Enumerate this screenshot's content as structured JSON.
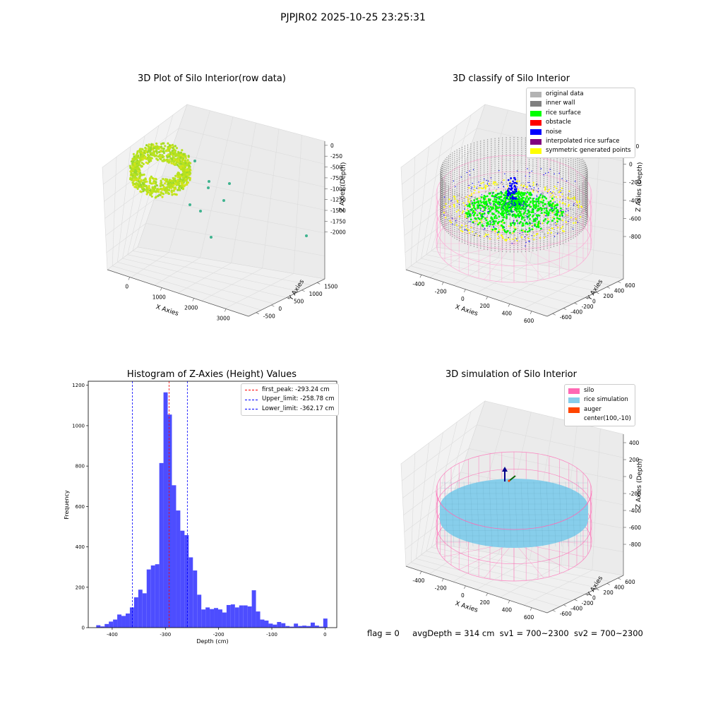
{
  "page": {
    "suptitle": "PJPJR02 2025-10-25 23:25:31",
    "footer": {
      "flag": "flag = 0",
      "avg": "avgDepth = 314 cm",
      "sv1": "sv1 = 700~2300",
      "sv2": "sv2 = 700~2300"
    }
  },
  "chart_data": [
    {
      "type": "scatter",
      "projection": "3d",
      "title": "3D Plot of Silo Interior(row data)",
      "xlabel": "X Axies",
      "ylabel": "Y Axies",
      "zlabel": "Z Axies (Depth)",
      "xticks": [
        "0",
        "1000",
        "2000",
        "3000"
      ],
      "yticks": [
        "-500",
        "0",
        "500",
        "1000",
        "1500"
      ],
      "zticks": [
        "0",
        "-250",
        "-500",
        "-750",
        "-1000",
        "-1250",
        "-1500",
        "-1750",
        "-2000"
      ],
      "colors": {
        "main": "#b7e21f",
        "outlier": "#3fb38f"
      }
    },
    {
      "type": "scatter",
      "projection": "3d",
      "title": "3D classify of Silo Interior",
      "xlabel": "X Axies",
      "ylabel": "Y Axies",
      "zlabel": "Z Axies (Depth)",
      "xticks": [
        "-400",
        "-200",
        "0",
        "200",
        "400",
        "600"
      ],
      "yticks": [
        "-600",
        "-400",
        "-200",
        "0",
        "200",
        "400",
        "600"
      ],
      "zticks": [
        "200",
        "0",
        "-200",
        "-400",
        "-600",
        "-800"
      ],
      "legend": [
        {
          "label": "original data",
          "color": "#b3b3b3"
        },
        {
          "label": "inner wall",
          "color": "#808080"
        },
        {
          "label": "rice surface",
          "color": "#00ff00"
        },
        {
          "label": "obstacle",
          "color": "#ff0000"
        },
        {
          "label": "noise",
          "color": "#0000ff"
        },
        {
          "label": "interpolated rice surface",
          "color": "#800080"
        },
        {
          "label": "symmetric generated points",
          "color": "#ffff00"
        }
      ]
    },
    {
      "type": "bar",
      "title": "Histogram of Z-Axies (Height) Values",
      "xlabel": "Depth (cm)",
      "ylabel": "Frequency",
      "xlim": [
        -445,
        22
      ],
      "ylim": [
        0,
        1220
      ],
      "xticks": [
        -400,
        -300,
        -200,
        -100,
        0
      ],
      "yticks": [
        0,
        200,
        400,
        600,
        800,
        1000,
        1200
      ],
      "bar_color": "#4d4dff",
      "bins": [
        {
          "left": -430.0,
          "count": 12
        },
        {
          "left": -422.1,
          "count": 6
        },
        {
          "left": -414.2,
          "count": 18
        },
        {
          "left": -406.3,
          "count": 30
        },
        {
          "left": -398.4,
          "count": 40
        },
        {
          "left": -390.5,
          "count": 65
        },
        {
          "left": -382.6,
          "count": 58
        },
        {
          "left": -374.7,
          "count": 70
        },
        {
          "left": -366.8,
          "count": 100
        },
        {
          "left": -358.9,
          "count": 150
        },
        {
          "left": -351.0,
          "count": 188
        },
        {
          "left": -343.1,
          "count": 170
        },
        {
          "left": -335.2,
          "count": 288
        },
        {
          "left": -327.3,
          "count": 308
        },
        {
          "left": -319.4,
          "count": 314
        },
        {
          "left": -311.5,
          "count": 815
        },
        {
          "left": -303.6,
          "count": 1165
        },
        {
          "left": -295.7,
          "count": 1055
        },
        {
          "left": -287.8,
          "count": 705
        },
        {
          "left": -279.9,
          "count": 580
        },
        {
          "left": -272.0,
          "count": 480
        },
        {
          "left": -264.1,
          "count": 458
        },
        {
          "left": -256.2,
          "count": 348
        },
        {
          "left": -248.3,
          "count": 283
        },
        {
          "left": -240.4,
          "count": 163
        },
        {
          "left": -232.5,
          "count": 90
        },
        {
          "left": -224.6,
          "count": 100
        },
        {
          "left": -216.7,
          "count": 92
        },
        {
          "left": -208.8,
          "count": 97
        },
        {
          "left": -200.9,
          "count": 90
        },
        {
          "left": -193.0,
          "count": 75
        },
        {
          "left": -185.1,
          "count": 112
        },
        {
          "left": -177.2,
          "count": 115
        },
        {
          "left": -169.3,
          "count": 100
        },
        {
          "left": -161.4,
          "count": 110
        },
        {
          "left": -153.5,
          "count": 110
        },
        {
          "left": -145.6,
          "count": 105
        },
        {
          "left": -137.7,
          "count": 185
        },
        {
          "left": -129.8,
          "count": 80
        },
        {
          "left": -121.9,
          "count": 40
        },
        {
          "left": -114.0,
          "count": 35
        },
        {
          "left": -106.1,
          "count": 20
        },
        {
          "left": -98.2,
          "count": 15
        },
        {
          "left": -90.3,
          "count": 28
        },
        {
          "left": -82.4,
          "count": 22
        },
        {
          "left": -74.5,
          "count": 8
        },
        {
          "left": -66.6,
          "count": 5
        },
        {
          "left": -58.7,
          "count": 20
        },
        {
          "left": -50.8,
          "count": 8
        },
        {
          "left": -42.9,
          "count": 10
        },
        {
          "left": -35.0,
          "count": 8
        },
        {
          "left": -27.1,
          "count": 25
        },
        {
          "left": -19.2,
          "count": 10
        },
        {
          "left": -11.3,
          "count": 5
        },
        {
          "left": -3.4,
          "count": 45
        }
      ],
      "bin_width": 7.9,
      "vlines": [
        {
          "label": "first_peak: -293.24 cm",
          "x": -293.24,
          "color": "#ff0000"
        },
        {
          "label": "Upper_limit: -258.78 cm",
          "x": -258.78,
          "color": "#0000ff"
        },
        {
          "label": "Lower_limit: -362.17 cm",
          "x": -362.17,
          "color": "#0000ff"
        }
      ]
    },
    {
      "type": "scatter",
      "projection": "3d",
      "title": "3D simulation of Silo Interior",
      "xlabel": "X Axies",
      "ylabel": "Y Axies",
      "zlabel": "Z Axies (Depth)",
      "xticks": [
        "-400",
        "-200",
        "0",
        "200",
        "400",
        "600"
      ],
      "yticks": [
        "-600",
        "-400",
        "-200",
        "0",
        "200",
        "400",
        "600"
      ],
      "zticks": [
        "400",
        "200",
        "0",
        "-200",
        "-400",
        "-600",
        "-800"
      ],
      "legend": [
        {
          "label": "silo",
          "color": "#ff69b4"
        },
        {
          "label": "rice simulation",
          "color": "#87ceeb"
        },
        {
          "label": "auger",
          "color": "#ff4500"
        },
        {
          "label": "center(100,-10)",
          "color": ""
        }
      ]
    }
  ]
}
